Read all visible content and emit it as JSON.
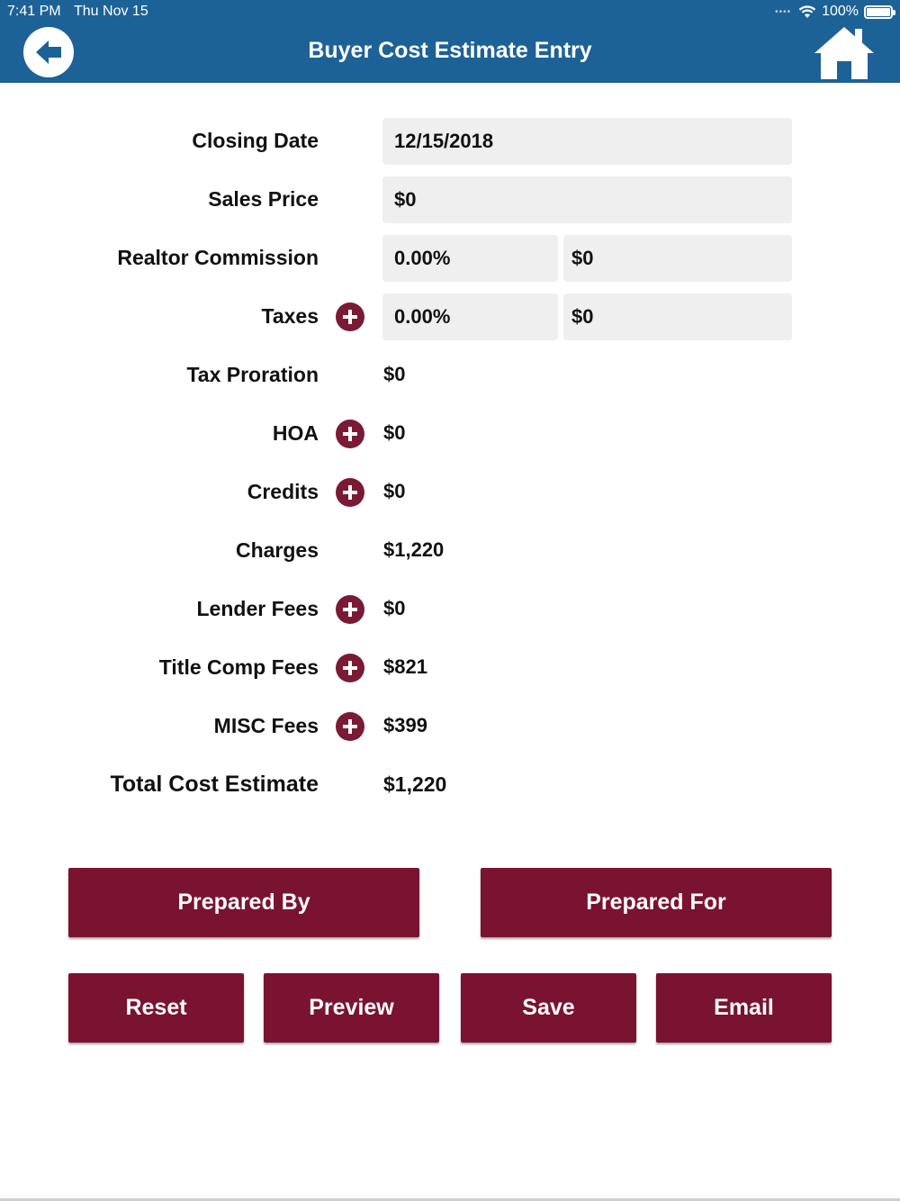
{
  "status_bar": {
    "time": "7:41 PM",
    "date": "Thu Nov 15",
    "battery": "100%"
  },
  "header": {
    "title": "Buyer Cost Estimate Entry",
    "back_icon": "arrow-left-circle-icon",
    "home_icon": "home-icon"
  },
  "colors": {
    "header": "#1d6297",
    "accent": "#7a1330",
    "field_bg": "#efefef"
  },
  "form": {
    "closing_date": {
      "label": "Closing Date",
      "value": "12/15/2018"
    },
    "sales_price": {
      "label": "Sales Price",
      "value": "$0"
    },
    "realtor_commission": {
      "label": "Realtor Commission",
      "percent": "0.00%",
      "amount": "$0"
    },
    "taxes": {
      "label": "Taxes",
      "percent": "0.00%",
      "amount": "$0"
    },
    "tax_proration": {
      "label": "Tax Proration",
      "value": "$0"
    },
    "hoa": {
      "label": "HOA",
      "value": "$0"
    },
    "credits": {
      "label": "Credits",
      "value": "$0"
    },
    "charges": {
      "label": "Charges",
      "value": "$1,220"
    },
    "lender_fees": {
      "label": "Lender Fees",
      "value": "$0"
    },
    "title_comp_fees": {
      "label": "Title Comp Fees",
      "value": "$821"
    },
    "misc_fees": {
      "label": "MISC Fees",
      "value": "$399"
    },
    "total_cost_estimate": {
      "label": "Total Cost Estimate",
      "value": "$1,220"
    }
  },
  "buttons": {
    "prepared_by": "Prepared By",
    "prepared_for": "Prepared For",
    "reset": "Reset",
    "preview": "Preview",
    "save": "Save",
    "email": "Email"
  }
}
